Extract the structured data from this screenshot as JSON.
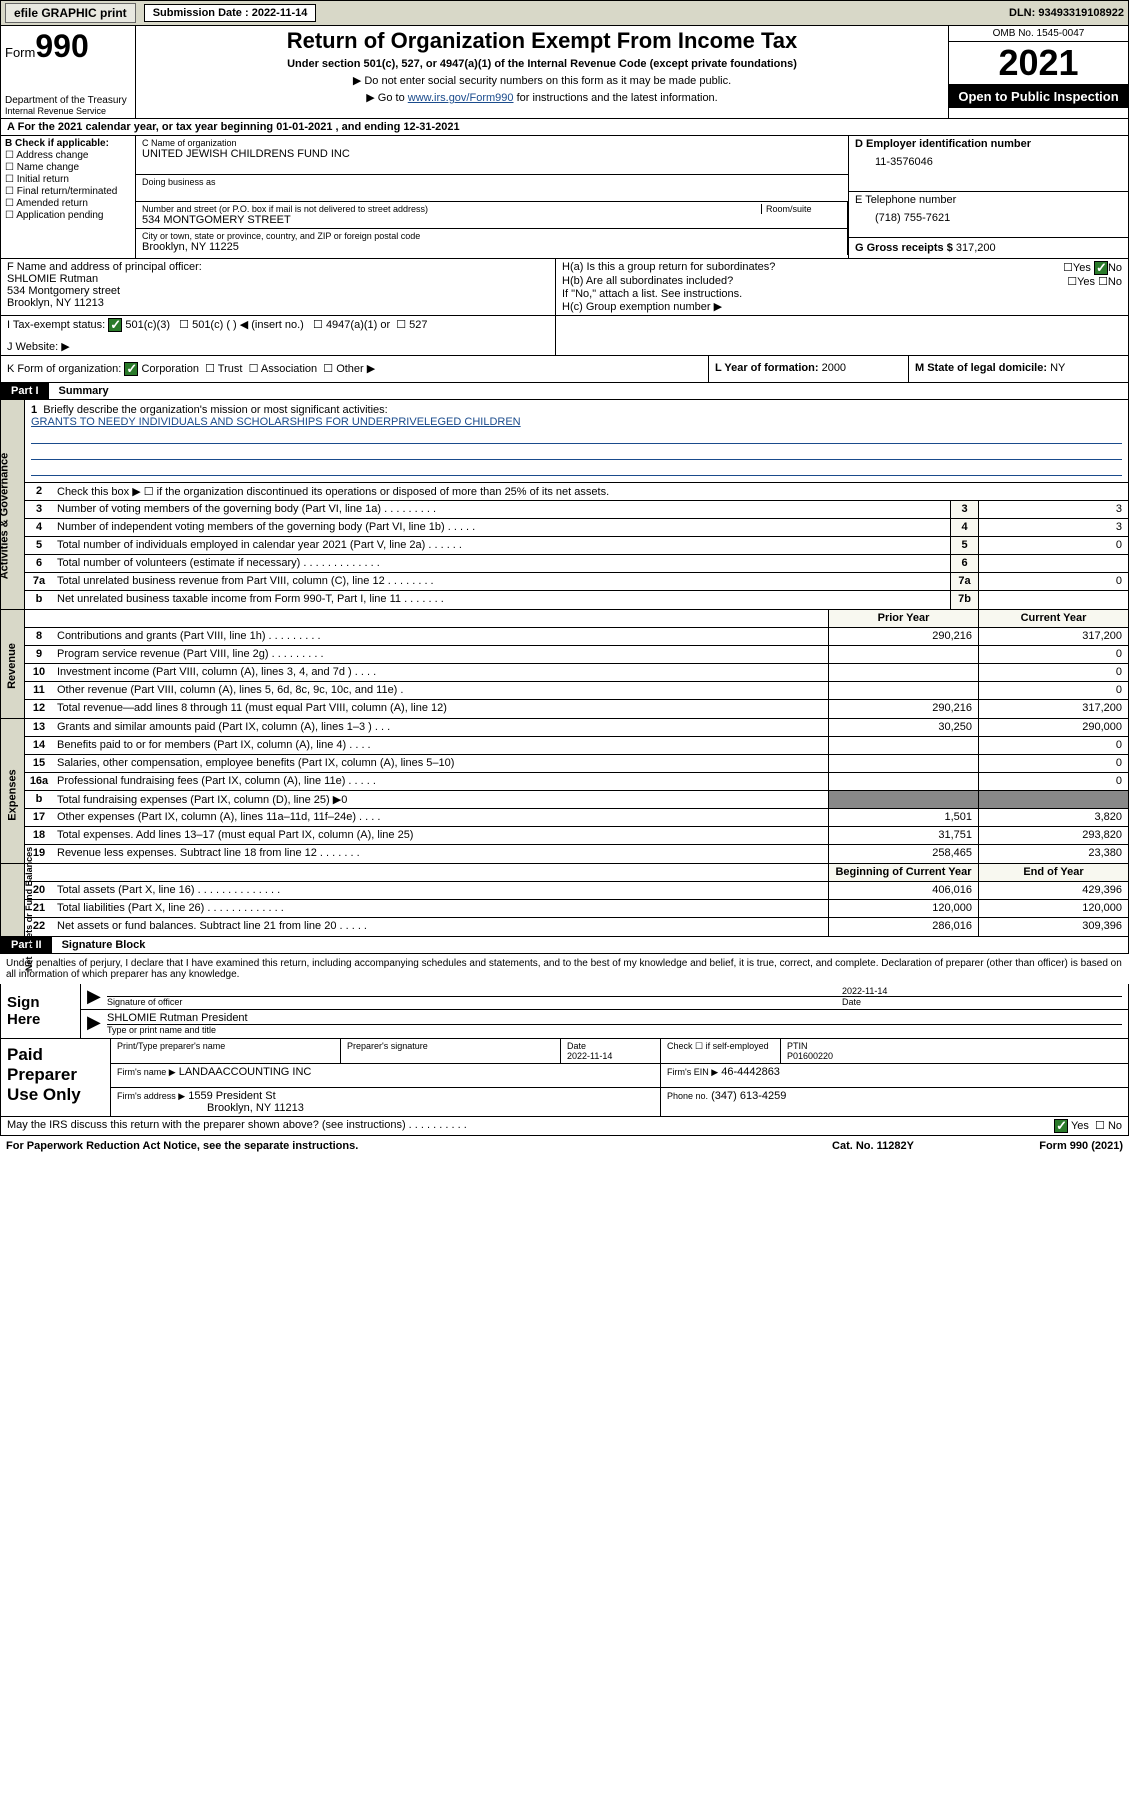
{
  "top_bar": {
    "efile_btn": "efile GRAPHIC print",
    "sub_label": "Submission Date : 2022-11-14",
    "dln": "DLN: 93493319108922"
  },
  "header": {
    "form_label": "Form",
    "form_num": "990",
    "dept": "Department of the Treasury",
    "irs": "Internal Revenue Service",
    "title": "Return of Organization Exempt From Income Tax",
    "subtitle": "Under section 501(c), 527, or 4947(a)(1) of the Internal Revenue Code (except private foundations)",
    "line2": "▶ Do not enter social security numbers on this form as it may be made public.",
    "line3_pre": "▶ Go to ",
    "line3_link": "www.irs.gov/Form990",
    "line3_post": " for instructions and the latest information.",
    "omb": "OMB No. 1545-0047",
    "year": "2021",
    "open_public": "Open to Public Inspection"
  },
  "period": "For the 2021 calendar year, or tax year beginning 01-01-2021   , and ending 12-31-2021",
  "section_b": {
    "label": "B Check if applicable:",
    "opts": [
      "Address change",
      "Name change",
      "Initial return",
      "Final return/terminated",
      "Amended return",
      "Application pending"
    ]
  },
  "section_c": {
    "name_label": "C Name of organization",
    "org_name": "UNITED JEWISH CHILDRENS FUND INC",
    "dba_label": "Doing business as",
    "street_label": "Number and street (or P.O. box if mail is not delivered to street address)",
    "room_label": "Room/suite",
    "street": "534 MONTGOMERY STREET",
    "city_label": "City or town, state or province, country, and ZIP or foreign postal code",
    "city": "Brooklyn, NY  11225"
  },
  "section_d": {
    "label": "D Employer identification number",
    "val": "11-3576046"
  },
  "section_e": {
    "label": "E Telephone number",
    "val": "(718) 755-7621"
  },
  "section_g": {
    "label": "G Gross receipts $",
    "val": "317,200"
  },
  "section_f": {
    "label": "F  Name and address of principal officer:",
    "name": "SHLOMIE Rutman",
    "addr1": "534 Montgomery street",
    "addr2": "Brooklyn, NY  11213"
  },
  "section_h": {
    "ha_label": "H(a)  Is this a group return for subordinates?",
    "ha_ans": "No",
    "hb_label": "H(b)  Are all subordinates included?",
    "hb_note": "If \"No,\" attach a list. See instructions.",
    "hc_label": "H(c)  Group exemption number ▶"
  },
  "section_i": {
    "label": "I   Tax-exempt status:",
    "opts": [
      "501(c)(3)",
      "501(c) (  ) ◀ (insert no.)",
      "4947(a)(1) or",
      "527"
    ]
  },
  "section_j": {
    "label": "J   Website: ▶"
  },
  "section_k": {
    "label": "K Form of organization:",
    "opts": [
      "Corporation",
      "Trust",
      "Association",
      "Other ▶"
    ],
    "l_label": "L Year of formation:",
    "l_val": "2000",
    "m_label": "M State of legal domicile:",
    "m_val": "NY"
  },
  "part1": {
    "num": "Part I",
    "title": "Summary"
  },
  "summary": {
    "line1_label": "Briefly describe the organization's mission or most significant activities:",
    "line1_text": "GRANTS TO NEEDY INDIVIDUALS AND SCHOLARSHIPS FOR UNDERPRIVELEGED CHILDREN",
    "line2": "Check this box ▶ ☐  if the organization discontinued its operations or disposed of more than 25% of its net assets.",
    "rows_gov": [
      {
        "n": "3",
        "d": "Number of voting members of the governing body (Part VI, line 1a)   .    .    .    .    .    .    .    .    .",
        "bn": "3",
        "v": "3"
      },
      {
        "n": "4",
        "d": "Number of independent voting members of the governing body (Part VI, line 1b)   .    .    .    .    .",
        "bn": "4",
        "v": "3"
      },
      {
        "n": "5",
        "d": "Total number of individuals employed in calendar year 2021 (Part V, line 2a)   .    .    .    .    .    .",
        "bn": "5",
        "v": "0"
      },
      {
        "n": "6",
        "d": "Total number of volunteers (estimate if necessary)   .    .    .    .    .    .    .    .    .    .    .    .    .",
        "bn": "6",
        "v": ""
      },
      {
        "n": "7a",
        "d": "Total unrelated business revenue from Part VIII, column (C), line 12   .    .    .    .    .    .    .    .",
        "bn": "7a",
        "v": "0"
      },
      {
        "n": "b",
        "d": "Net unrelated business taxable income from Form 990-T, Part I, line 11   .    .    .    .    .    .    .",
        "bn": "7b",
        "v": ""
      }
    ],
    "hdr_prior": "Prior Year",
    "hdr_curr": "Current Year",
    "rows_rev": [
      {
        "n": "8",
        "d": "Contributions and grants (Part VIII, line 1h)   .    .    .    .    .    .    .    .    .",
        "p": "290,216",
        "c": "317,200"
      },
      {
        "n": "9",
        "d": "Program service revenue (Part VIII, line 2g)   .    .    .    .    .    .    .    .    .",
        "p": "",
        "c": "0"
      },
      {
        "n": "10",
        "d": "Investment income (Part VIII, column (A), lines 3, 4, and 7d )   .    .    .    .",
        "p": "",
        "c": "0"
      },
      {
        "n": "11",
        "d": "Other revenue (Part VIII, column (A), lines 5, 6d, 8c, 9c, 10c, and 11e)   .",
        "p": "",
        "c": "0"
      },
      {
        "n": "12",
        "d": "Total revenue—add lines 8 through 11 (must equal Part VIII, column (A), line 12)",
        "p": "290,216",
        "c": "317,200"
      }
    ],
    "rows_exp": [
      {
        "n": "13",
        "d": "Grants and similar amounts paid (Part IX, column (A), lines 1–3 )   .    .    .",
        "p": "30,250",
        "c": "290,000"
      },
      {
        "n": "14",
        "d": "Benefits paid to or for members (Part IX, column (A), line 4)   .    .    .    .",
        "p": "",
        "c": "0"
      },
      {
        "n": "15",
        "d": "Salaries, other compensation, employee benefits (Part IX, column (A), lines 5–10)",
        "p": "",
        "c": "0"
      },
      {
        "n": "16a",
        "d": "Professional fundraising fees (Part IX, column (A), line 11e)   .    .    .    .    .",
        "p": "",
        "c": "0"
      },
      {
        "n": "b",
        "d": "Total fundraising expenses (Part IX, column (D), line 25) ▶0",
        "p": "grey",
        "c": "grey"
      },
      {
        "n": "17",
        "d": "Other expenses (Part IX, column (A), lines 11a–11d, 11f–24e)   .    .    .    .",
        "p": "1,501",
        "c": "3,820"
      },
      {
        "n": "18",
        "d": "Total expenses. Add lines 13–17 (must equal Part IX, column (A), line 25)",
        "p": "31,751",
        "c": "293,820"
      },
      {
        "n": "19",
        "d": "Revenue less expenses. Subtract line 18 from line 12   .    .    .    .    .    .    .",
        "p": "258,465",
        "c": "23,380"
      }
    ],
    "hdr_begin": "Beginning of Current Year",
    "hdr_end": "End of Year",
    "rows_net": [
      {
        "n": "20",
        "d": "Total assets (Part X, line 16)   .    .    .    .    .    .    .    .    .    .    .    .    .    .",
        "p": "406,016",
        "c": "429,396"
      },
      {
        "n": "21",
        "d": "Total liabilities (Part X, line 26)   .    .    .    .    .    .    .    .    .    .    .    .    .",
        "p": "120,000",
        "c": "120,000"
      },
      {
        "n": "22",
        "d": "Net assets or fund balances. Subtract line 21 from line 20   .    .    .    .    .",
        "p": "286,016",
        "c": "309,396"
      }
    ]
  },
  "side_labels": {
    "gov": "Activities & Governance",
    "rev": "Revenue",
    "exp": "Expenses",
    "net": "Net Assets or Fund Balances"
  },
  "part2": {
    "num": "Part II",
    "title": "Signature Block"
  },
  "declaration": "Under penalties of perjury, I declare that I have examined this return, including accompanying schedules and statements, and to the best of my knowledge and belief, it is true, correct, and complete. Declaration of preparer (other than officer) is based on all information of which preparer has any knowledge.",
  "sign": {
    "label": "Sign Here",
    "date": "2022-11-14",
    "sig_label": "Signature of officer",
    "date_label": "Date",
    "name": "SHLOMIE Rutman  President",
    "name_label": "Type or print name and title"
  },
  "paid": {
    "label": "Paid Preparer Use Only",
    "h1": "Print/Type preparer's name",
    "h2": "Preparer's signature",
    "h3": "Date",
    "h3v": "2022-11-14",
    "h4": "Check ☐ if self-employed",
    "h5": "PTIN",
    "h5v": "P01600220",
    "firm_name_lbl": "Firm's name     ▶",
    "firm_name": "LANDAACCOUNTING INC",
    "firm_ein_lbl": "Firm's EIN ▶",
    "firm_ein": "46-4442863",
    "firm_addr_lbl": "Firm's address ▶",
    "firm_addr": "1559 President St",
    "firm_city": "Brooklyn, NY  11213",
    "phone_lbl": "Phone no.",
    "phone": "(347) 613-4259"
  },
  "footer": {
    "discuss": "May the IRS discuss this return with the preparer shown above? (see instructions)   .    .    .    .    .    .    .    .    .    .",
    "yes": "Yes",
    "no": "No",
    "paperwork": "For Paperwork Reduction Act Notice, see the separate instructions.",
    "cat": "Cat. No. 11282Y",
    "form": "Form 990 (2021)"
  }
}
